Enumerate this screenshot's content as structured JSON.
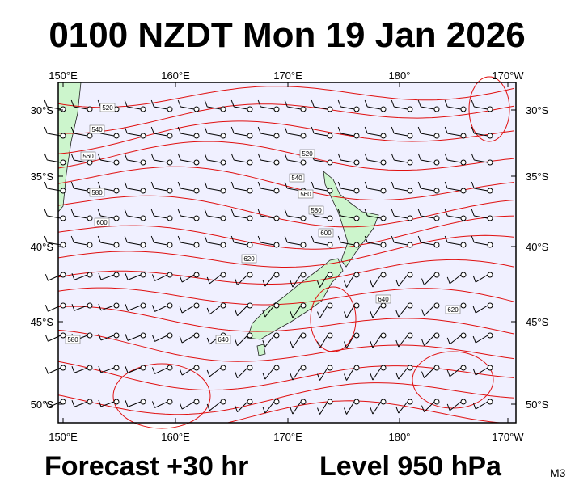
{
  "header": {
    "title": "0100 NZDT Mon 19 Jan 2026"
  },
  "map": {
    "lon_labels": [
      "150°E",
      "160°E",
      "170°E",
      "180°",
      "170°W"
    ],
    "lat_labels": [
      "30°S",
      "35°S",
      "40°S",
      "45°S",
      "50°S"
    ],
    "contour_labels": [
      "520",
      "540",
      "560",
      "580",
      "600",
      "520",
      "540",
      "560",
      "580",
      "600",
      "620",
      "640",
      "620",
      "580",
      "640"
    ]
  },
  "footer": {
    "forecast": "Forecast +30 hr",
    "level": "Level 950 hPa",
    "model": "M3"
  }
}
